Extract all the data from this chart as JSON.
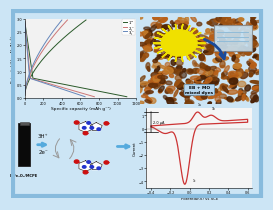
{
  "outer_bg": "#cce5f5",
  "border_color": "#88bbdd",
  "battery_xlabel": "Specific capacity (mAh g⁻¹)",
  "battery_ylabel": "Potential (V vs Na/Na⁺)",
  "battery_ylim": [
    0.0,
    3.0
  ],
  "battery_xlim": [
    0,
    1200
  ],
  "battery_xticks": [
    0,
    200,
    400,
    600,
    800,
    1000,
    1200
  ],
  "battery_yticks": [
    0.0,
    0.5,
    1.0,
    1.5,
    2.0,
    2.5,
    3.0
  ],
  "battery_legend": [
    "1ˢᵗ",
    "2˳ᵗ",
    "3˳ᵗ"
  ],
  "battery_colors": [
    "#2a5a2a",
    "#cc7777",
    "#6688bb"
  ],
  "battery_discharge_caps": [
    1100,
    750,
    650
  ],
  "battery_charge_caps": [
    660,
    460,
    400
  ],
  "cv_xlabel": "Potential(V) vs SCE",
  "cv_ylabel": "Current",
  "cv_xlim": [
    -0.45,
    0.65
  ],
  "cv_color": "#cc3333",
  "cv_annotation": "2.0 μA",
  "sensing_text": "NiFe₂O₄/MCPE",
  "sensing_arrow_color": "#55aadd",
  "sensing_proton": "3H⁺",
  "sensing_electron": "2e⁻",
  "photo_text": "EB + MO\nmixed dyes",
  "photo_bg": "#6b3a10"
}
